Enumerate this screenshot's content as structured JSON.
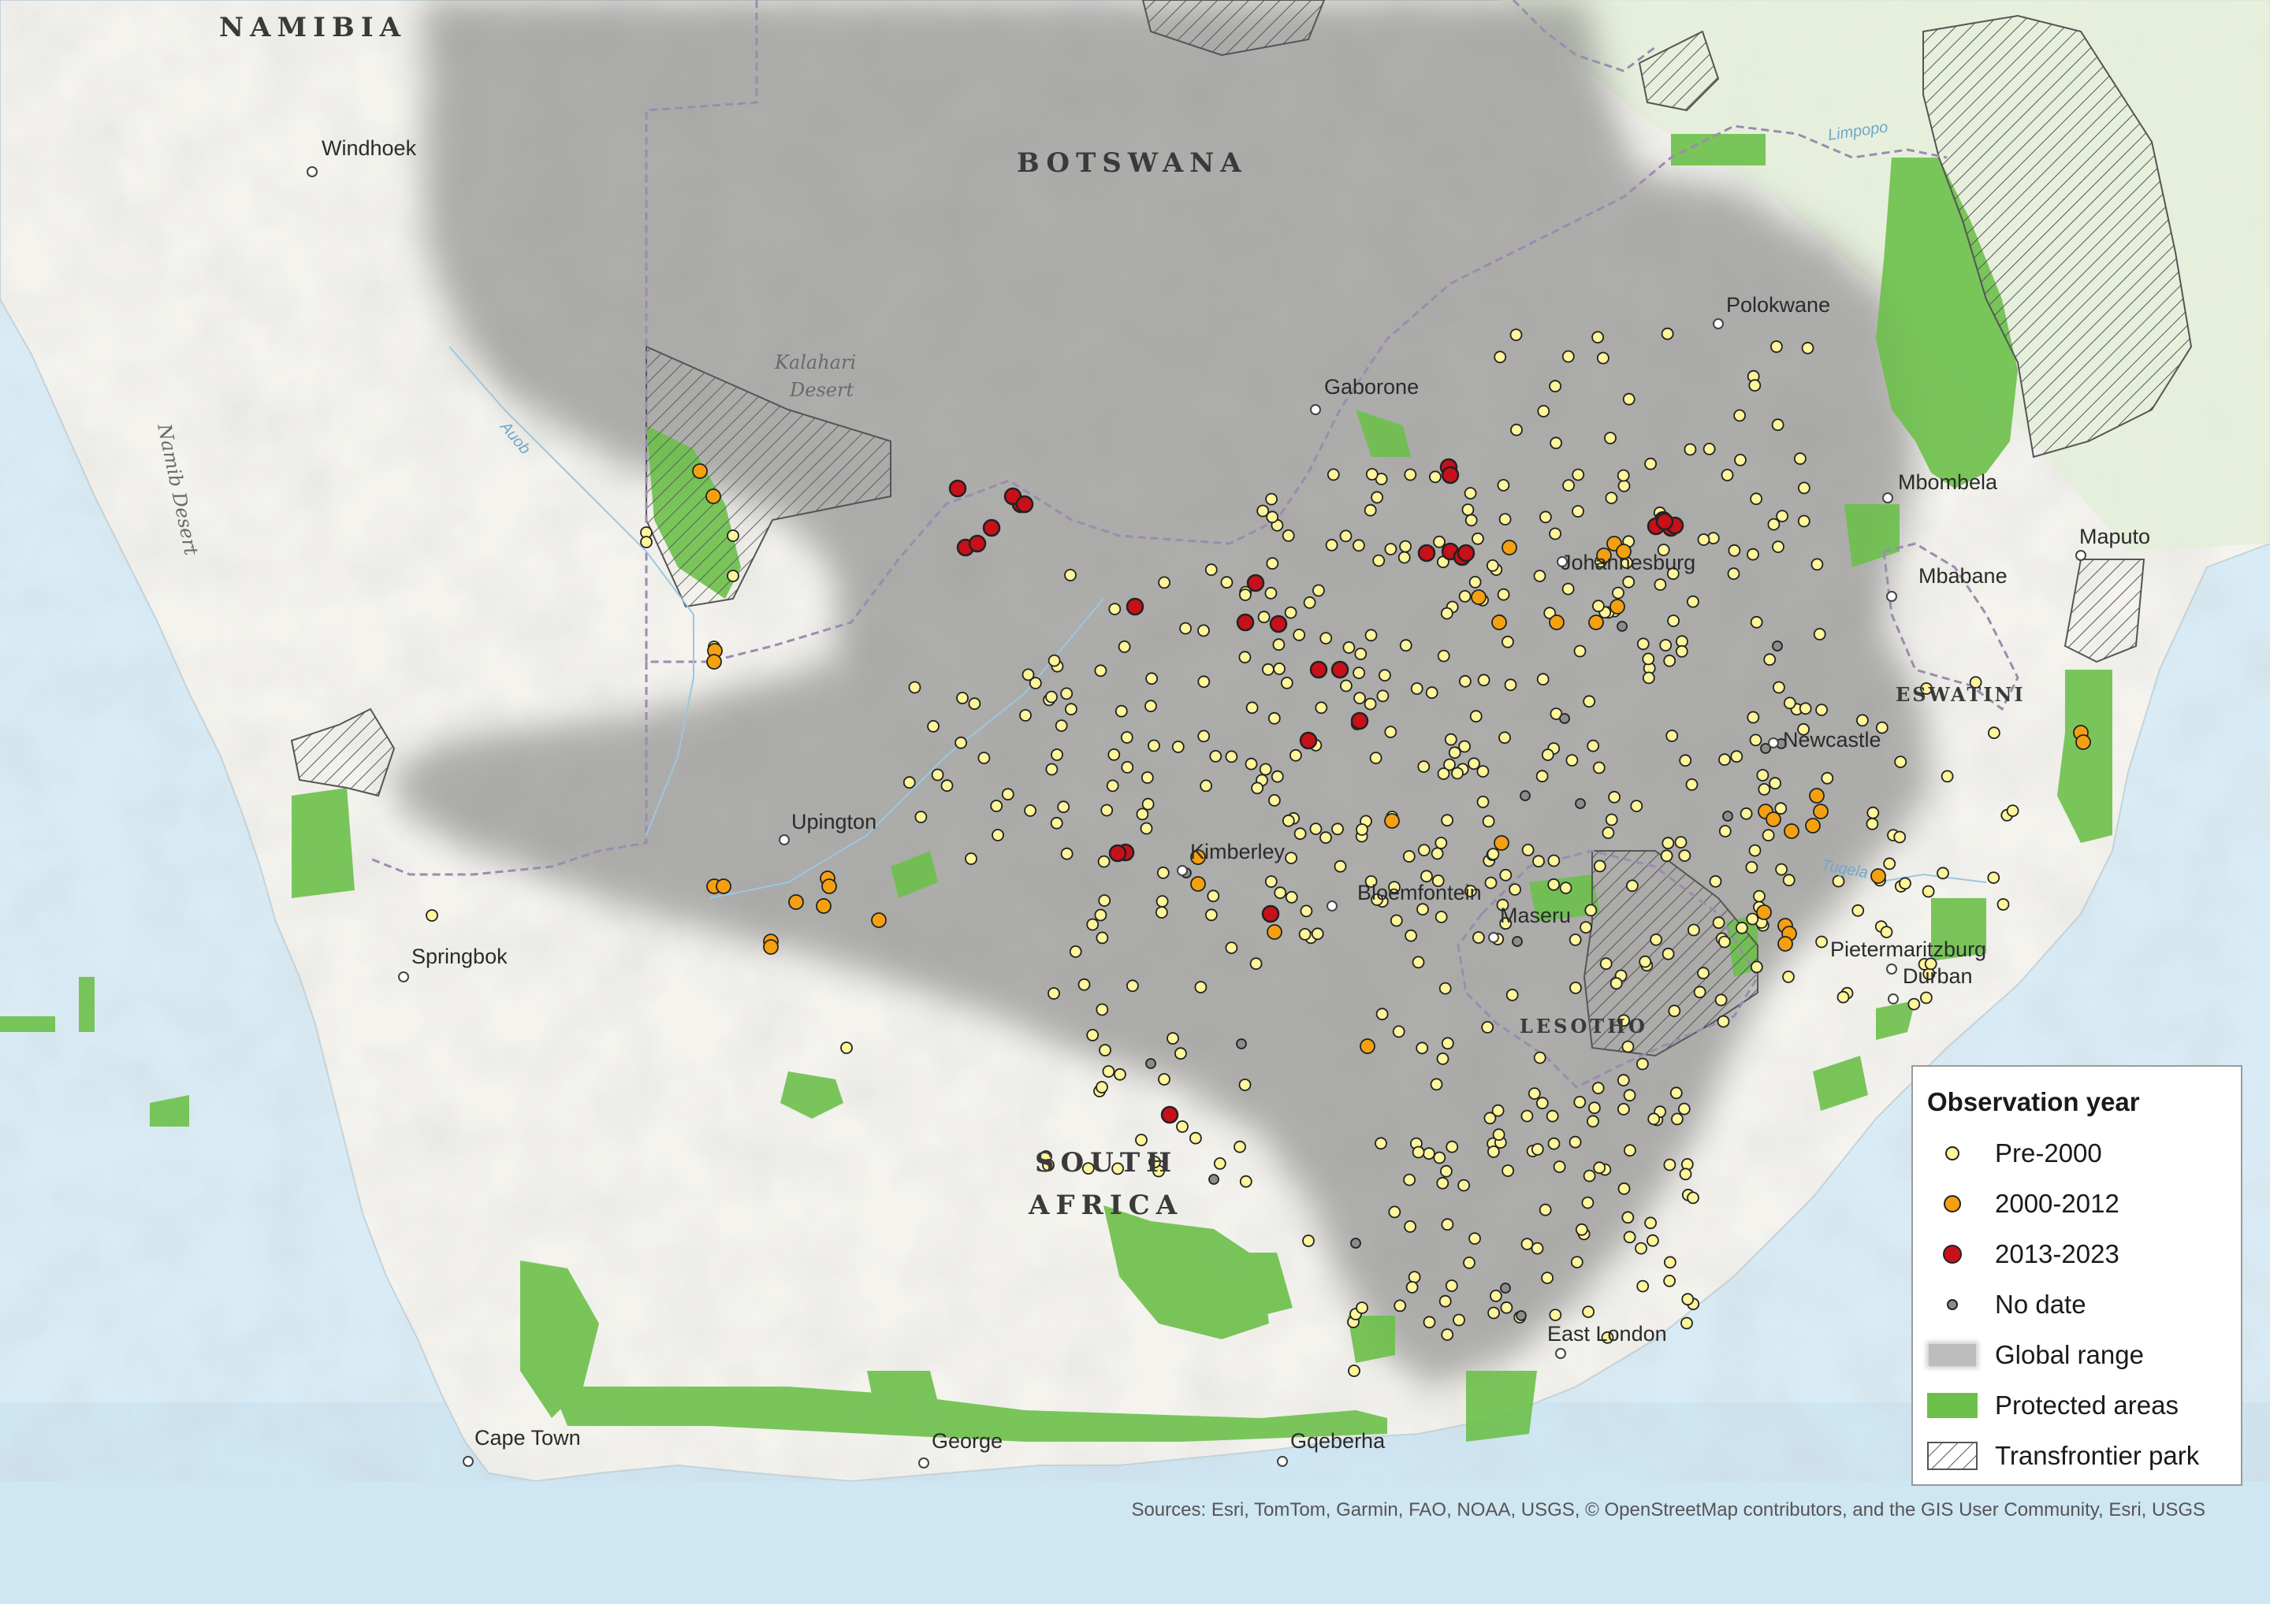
{
  "countries": [
    "NAMIBIA",
    "BOTSWANA",
    "SOUTH",
    "AFRICA",
    "ESWATINI",
    "LESOTHO"
  ],
  "cities": [
    "Windhoek",
    "Gaborone",
    "Polokwane",
    "Johannesburg",
    "Mbombela",
    "Maputo",
    "Mbabane",
    "Newcastle",
    "Upington",
    "Kimberley",
    "Bloemfontein",
    "Maseru",
    "Springbok",
    "Pietermaritzburg",
    "Durban",
    "East London",
    "Cape Town",
    "George",
    "Gqeberha"
  ],
  "physical": [
    "Kalahari",
    "Desert",
    "Namib Desert"
  ],
  "rivers": [
    "Auob",
    "Limpopo",
    "Tugela"
  ],
  "legend": {
    "title": "Observation year",
    "items": [
      {
        "label": "Pre-2000",
        "color": "#fff59a"
      },
      {
        "label": "2000-2012",
        "color": "#f5a010"
      },
      {
        "label": "2013-2023",
        "color": "#c8101a"
      },
      {
        "label": "No date",
        "color": "#8c8c8c"
      },
      {
        "label": "Global range",
        "color": "#8a8a8a"
      },
      {
        "label": "Protected areas",
        "color": "#6cc04a"
      },
      {
        "label": "Transfrontier park",
        "color": "#ffffff"
      }
    ]
  },
  "attribution": "Sources: Esri, TomTom, Garmin, FAO, NOAA, USGS, © OpenStreetMap contributors, and the GIS User Community, Esri, USGS"
}
